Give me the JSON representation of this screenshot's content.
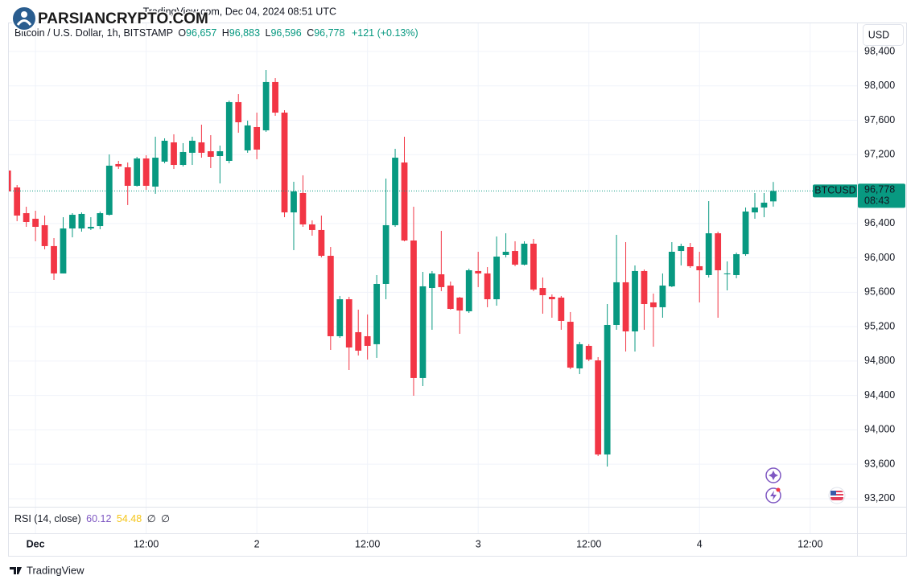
{
  "header": {
    "published": "TradingView.com, Dec 04, 2024 08:51 UTC",
    "watermark": "PARSIANCRYPTO.COM",
    "currency": "USD"
  },
  "footer": {
    "brand": "TradingView"
  },
  "chart_data": {
    "type": "candlestick",
    "title": "Bitcoin / U.S. Dollar, 1h, BITSTAMP",
    "legend": {
      "items": [
        {
          "label": "O",
          "value": "96,657"
        },
        {
          "label": "H",
          "value": "96,883"
        },
        {
          "label": "L",
          "value": "96,596"
        },
        {
          "label": "C",
          "value": "96,778"
        }
      ],
      "change": "+121 (+0.13%)"
    },
    "categories": [
      null,
      null,
      null,
      "Dec",
      null,
      null,
      null,
      null,
      null,
      null,
      null,
      null,
      null,
      null,
      null,
      "12:00",
      null,
      null,
      null,
      null,
      null,
      null,
      null,
      null,
      null,
      null,
      null,
      "2",
      null,
      null,
      null,
      null,
      null,
      null,
      null,
      null,
      null,
      null,
      null,
      "12:00",
      null,
      null,
      null,
      null,
      null,
      null,
      null,
      null,
      null,
      null,
      null,
      "3",
      null,
      null,
      null,
      null,
      null,
      null,
      null,
      null,
      null,
      null,
      null,
      "12:00",
      null,
      null,
      null,
      null,
      null,
      null,
      null,
      null,
      null,
      null,
      null,
      "4",
      null,
      null,
      null,
      null,
      null,
      null,
      null,
      null,
      null,
      null,
      null,
      "12:00",
      null,
      null,
      null,
      null
    ],
    "open": [
      97016,
      96819,
      96520,
      96455,
      96380,
      96137,
      95819,
      96342,
      96342,
      96342,
      96370,
      96501,
      97091,
      97053,
      96838,
      97156,
      96829,
      97119,
      97343,
      97081,
      97222,
      97343,
      97240,
      97184,
      97128,
      97811,
      97250,
      97521,
      97483,
      98045,
      97689,
      96529,
      96754,
      96389,
      96324,
      96024,
      95089,
      95519,
      95136,
      95089,
      94996,
      95697,
      96380,
      97109,
      96202,
      94603,
      95650,
      95809,
      95678,
      95538,
      95379,
      95847,
      95819,
      95519,
      96034,
      96080,
      95921,
      96165,
      95650,
      95547,
      95538,
      95257,
      94715,
      94977,
      94808,
      93714,
      95220,
      95716,
      95145,
      95847,
      95482,
      95426,
      95669,
      96080,
      96127,
      95903,
      95800,
      96286,
      95809,
      95800,
      96043,
      96529,
      96586,
      96657,
      null,
      null,
      null,
      null,
      null,
      null,
      null,
      null
    ],
    "high": [
      97034,
      96847,
      96595,
      96548,
      96492,
      96230,
      96473,
      96520,
      96529,
      96473,
      96539,
      97203,
      97128,
      97109,
      97175,
      97193,
      97409,
      97390,
      97437,
      97334,
      97409,
      97549,
      97427,
      97306,
      97829,
      97904,
      97596,
      97689,
      98185,
      98091,
      97717,
      96885,
      96960,
      96436,
      96492,
      96127,
      95557,
      95547,
      95398,
      95342,
      95800,
      96922,
      97268,
      97409,
      96595,
      95837,
      95847,
      96314,
      95725,
      95547,
      95875,
      96071,
      95893,
      96249,
      96286,
      96193,
      96193,
      96221,
      95772,
      95575,
      95557,
      95370,
      95024,
      94996,
      94846,
      95463,
      96268,
      96183,
      95912,
      95865,
      95585,
      95819,
      96183,
      96165,
      96174,
      96071,
      96660,
      96305,
      95959,
      96062,
      96586,
      96754,
      96754,
      96883,
      null,
      null,
      null,
      null,
      null,
      null,
      null,
      null
    ],
    "low": [
      96754,
      96427,
      96361,
      96193,
      96099,
      95744,
      95819,
      96239,
      96305,
      96324,
      96333,
      96492,
      97034,
      96614,
      96829,
      96791,
      96745,
      97100,
      97034,
      97063,
      97081,
      97165,
      97044,
      96866,
      97100,
      97455,
      97222,
      97147,
      97465,
      97652,
      96473,
      96090,
      96361,
      96258,
      96006,
      94930,
      95070,
      94696,
      94865,
      94818,
      94837,
      95519,
      96361,
      96193,
      94397,
      94509,
      95164,
      95613,
      95398,
      95117,
      95360,
      95660,
      95426,
      95444,
      96006,
      95903,
      95912,
      95613,
      95351,
      95304,
      95164,
      94706,
      94649,
      94799,
      93695,
      93574,
      95164,
      94911,
      94911,
      95164,
      94967,
      95304,
      95660,
      95912,
      95884,
      95482,
      95772,
      95304,
      95622,
      95763,
      96024,
      96455,
      96473,
      96596,
      null,
      null,
      null,
      null,
      null,
      null,
      null,
      null
    ],
    "close": [
      96773,
      96492,
      96417,
      96361,
      96137,
      95819,
      96342,
      96501,
      96511,
      96361,
      96520,
      97072,
      97063,
      96838,
      97156,
      96838,
      97165,
      97362,
      97081,
      97231,
      97362,
      97222,
      97175,
      97240,
      97811,
      97577,
      97540,
      97259,
      98045,
      97689,
      96529,
      96773,
      96389,
      96324,
      96024,
      95089,
      95519,
      94958,
      94921,
      94977,
      95697,
      96380,
      97165,
      96202,
      94603,
      95669,
      95819,
      95660,
      95407,
      95388,
      95856,
      95819,
      95519,
      96015,
      96071,
      95921,
      96165,
      95632,
      95566,
      95519,
      95267,
      94724,
      94996,
      94818,
      93714,
      95220,
      95716,
      95145,
      95847,
      95463,
      95426,
      95678,
      96071,
      96137,
      95903,
      95856,
      96286,
      95856,
      95819,
      96043,
      96539,
      96586,
      96642,
      96778,
      null,
      null,
      null,
      null,
      null,
      null,
      null,
      null
    ],
    "up_color": "#089981",
    "down_color": "#f23645",
    "ylim": [
      93106,
      98718
    ],
    "yticks": [
      {
        "value": 93200,
        "label": "93,200"
      },
      {
        "value": 93600,
        "label": "93,600"
      },
      {
        "value": 94000,
        "label": "94,000"
      },
      {
        "value": 94400,
        "label": "94,400"
      },
      {
        "value": 94800,
        "label": "94,800"
      },
      {
        "value": 95200,
        "label": "95,200"
      },
      {
        "value": 95600,
        "label": "95,600"
      },
      {
        "value": 96000,
        "label": "96,000"
      },
      {
        "value": 96400,
        "label": "96,400"
      },
      {
        "value": 97200,
        "label": "97,200"
      },
      {
        "value": 97600,
        "label": "97,600"
      },
      {
        "value": 98000,
        "label": "98,000"
      },
      {
        "value": 98400,
        "label": "98,400"
      }
    ],
    "grid": true,
    "last_price": {
      "name": "BTCUSD",
      "value": 96778,
      "value_label": "96,778",
      "countdown": "08:43"
    },
    "rsi": {
      "label": "RSI (14, close)",
      "values": [
        60.12,
        54.48
      ],
      "colors": [
        "#7e57c2",
        "#f5c518"
      ],
      "empty": [
        "∅",
        "∅"
      ]
    }
  }
}
